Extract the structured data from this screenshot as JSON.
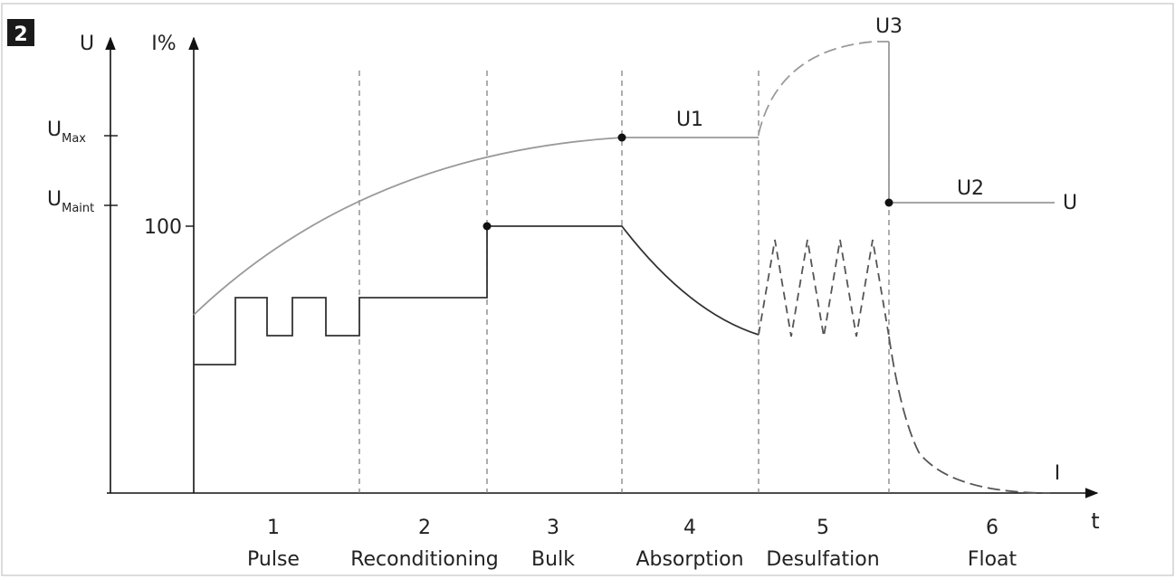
{
  "badge": "2",
  "axes": {
    "u_axis_label": "U",
    "i_axis_label": "I%",
    "t_axis_label": "t",
    "u_max_base": "U",
    "u_max_sub": "Max",
    "u_maint_base": "U",
    "u_maint_sub": "Maint",
    "tick_100": "100"
  },
  "curve_labels": {
    "u1": "U1",
    "u2": "U2",
    "u3": "U3",
    "u_end": "U",
    "i_end": "I"
  },
  "stages": [
    {
      "number": "1",
      "name": "Pulse"
    },
    {
      "number": "2",
      "name": "Reconditioning"
    },
    {
      "number": "3",
      "name": "Bulk"
    },
    {
      "number": "4",
      "name": "Absorption"
    },
    {
      "number": "5",
      "name": "Desulfation"
    },
    {
      "number": "6",
      "name": "Float"
    }
  ],
  "colors": {
    "voltage_curve": "#9a9a9a",
    "current_curve": "#333333",
    "desulfation_curve": "#555555",
    "guides": "#777777",
    "frame": "#d0d0d0",
    "badge_bg": "#1a1a1a"
  }
}
